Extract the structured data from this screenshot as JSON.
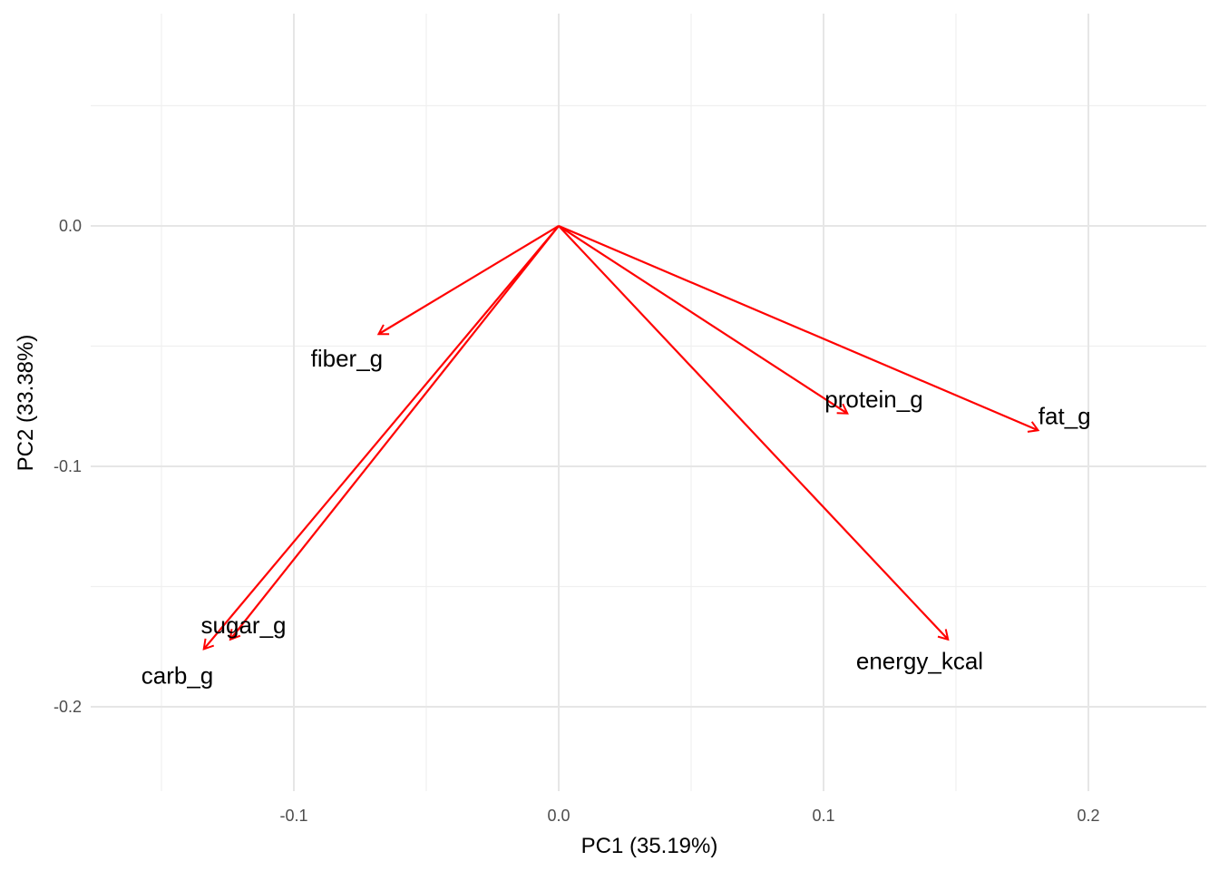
{
  "chart_data": {
    "type": "scatter",
    "subtype": "pca-loadings-biplot",
    "title": "",
    "xlabel": "PC1 (35.19%)",
    "ylabel": "PC2 (33.38%)",
    "xlim": [
      -0.165,
      0.245
    ],
    "ylim": [
      -0.235,
      0.088
    ],
    "x_ticks": [
      -0.1,
      0.0,
      0.1,
      0.2
    ],
    "x_tick_labels": [
      "-0.1",
      "0.0",
      "0.1",
      "0.2"
    ],
    "x_minor_ticks": [
      -0.15,
      -0.05,
      0.05,
      0.15
    ],
    "y_ticks": [
      -0.2,
      -0.1,
      0.0
    ],
    "y_tick_labels": [
      "-0.2",
      "-0.1",
      "0.0"
    ],
    "y_minor_ticks": [
      -0.15,
      -0.05,
      0.05
    ],
    "grid": true,
    "legend": "none",
    "arrow_color": "#ff0000",
    "origin": [
      0,
      0
    ],
    "loadings": [
      {
        "name": "fiber_g",
        "x": -0.068,
        "y": -0.045
      },
      {
        "name": "sugar_g",
        "x": -0.124,
        "y": -0.172
      },
      {
        "name": "carb_g",
        "x": -0.134,
        "y": -0.176
      },
      {
        "name": "protein_g",
        "x": 0.109,
        "y": -0.078
      },
      {
        "name": "fat_g",
        "x": 0.181,
        "y": -0.085
      },
      {
        "name": "energy_kcal",
        "x": 0.147,
        "y": -0.172
      }
    ],
    "labels": [
      {
        "text": "fiber_g",
        "x": -0.08,
        "y": -0.055
      },
      {
        "text": "sugar_g",
        "x": -0.119,
        "y": -0.166
      },
      {
        "text": "carb_g",
        "x": -0.144,
        "y": -0.187
      },
      {
        "text": "protein_g",
        "x": 0.119,
        "y": -0.072
      },
      {
        "text": "fat_g",
        "x": 0.191,
        "y": -0.079
      },
      {
        "text": "energy_kcal",
        "x": 136,
        "y": -0.181
      }
    ]
  }
}
